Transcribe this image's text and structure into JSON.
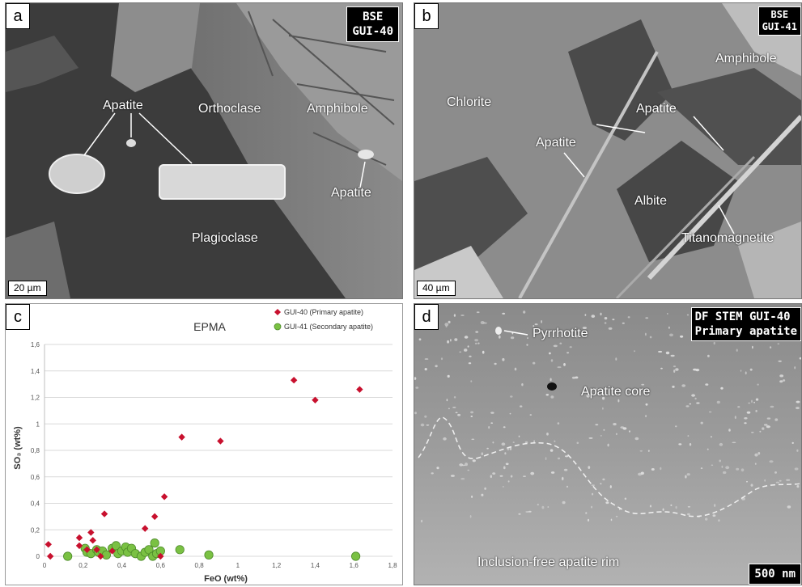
{
  "panel_a": {
    "letter": "a",
    "tag_line1": "BSE",
    "tag_line2": "GUI-40",
    "scale": "20 µm",
    "labels": {
      "apatite_top": "Apatite",
      "orthoclase": "Orthoclase",
      "amphibole": "Amphibole",
      "apatite_right": "Apatite",
      "plagioclase": "Plagioclase"
    }
  },
  "panel_b": {
    "letter": "b",
    "tag_line1": "BSE",
    "tag_line2": "GUI-41",
    "scale": "40 µm",
    "labels": {
      "amphibole": "Amphibole",
      "chlorite": "Chlorite",
      "apatite_right": "Apatite",
      "apatite_left": "Apatite",
      "albite": "Albite",
      "titanomagnetite": "Titanomagnetite"
    }
  },
  "panel_c": {
    "letter": "c",
    "chart_data": {
      "type": "scatter",
      "title": "EPMA",
      "xlabel": "FeO (wt%)",
      "ylabel": "SO₃ (wt%)",
      "xlim": [
        0,
        1.8
      ],
      "ylim": [
        0,
        1.6
      ],
      "x_ticks": [
        "0",
        "0,2",
        "0,4",
        "0,6",
        "0,8",
        "1",
        "1,2",
        "1,4",
        "1,6",
        "1,8"
      ],
      "y_ticks": [
        "0",
        "0,2",
        "0,4",
        "0,6",
        "0,8",
        "1",
        "1,2",
        "1,4",
        "1,6"
      ],
      "grid": "horizontal",
      "legend_position": "top-right",
      "series": [
        {
          "name": "GUI-40 (Primary apatite)",
          "marker": "diamond",
          "color": "#c8102e",
          "points": [
            [
              0.02,
              0.09
            ],
            [
              0.03,
              0.0
            ],
            [
              0.18,
              0.14
            ],
            [
              0.18,
              0.08
            ],
            [
              0.22,
              0.05
            ],
            [
              0.24,
              0.18
            ],
            [
              0.25,
              0.12
            ],
            [
              0.27,
              0.05
            ],
            [
              0.29,
              0.0
            ],
            [
              0.31,
              0.32
            ],
            [
              0.35,
              0.04
            ],
            [
              0.52,
              0.21
            ],
            [
              0.57,
              0.3
            ],
            [
              0.6,
              0.0
            ],
            [
              0.62,
              0.45
            ],
            [
              0.71,
              0.9
            ],
            [
              0.91,
              0.87
            ],
            [
              1.29,
              1.33
            ],
            [
              1.4,
              1.18
            ],
            [
              1.63,
              1.26
            ]
          ]
        },
        {
          "name": "GUI-41 (Secondary apatite)",
          "marker": "circle",
          "color": "#7ac143",
          "points": [
            [
              0.12,
              0.0
            ],
            [
              0.21,
              0.06
            ],
            [
              0.22,
              0.03
            ],
            [
              0.24,
              0.02
            ],
            [
              0.27,
              0.05
            ],
            [
              0.28,
              0.03
            ],
            [
              0.3,
              0.04
            ],
            [
              0.32,
              0.01
            ],
            [
              0.35,
              0.06
            ],
            [
              0.37,
              0.08
            ],
            [
              0.38,
              0.02
            ],
            [
              0.4,
              0.04
            ],
            [
              0.42,
              0.07
            ],
            [
              0.43,
              0.03
            ],
            [
              0.45,
              0.06
            ],
            [
              0.47,
              0.02
            ],
            [
              0.5,
              0.0
            ],
            [
              0.52,
              0.03
            ],
            [
              0.54,
              0.05
            ],
            [
              0.56,
              0.0
            ],
            [
              0.57,
              0.1
            ],
            [
              0.58,
              0.02
            ],
            [
              0.6,
              0.04
            ],
            [
              0.7,
              0.05
            ],
            [
              0.85,
              0.01
            ],
            [
              1.61,
              0.0
            ]
          ]
        }
      ]
    }
  },
  "panel_d": {
    "letter": "d",
    "tag_line1": "DF STEM GUI-40",
    "tag_line2": "Primary apatite",
    "scale": "500 nm",
    "labels": {
      "pyrrhotite": "Pyrrhotite",
      "apatite_core": "Apatite core",
      "rim": "Inclusion-free apatite rim"
    }
  }
}
